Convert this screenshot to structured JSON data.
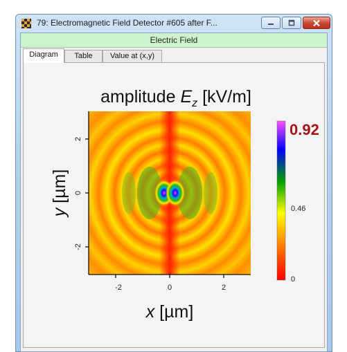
{
  "window": {
    "title": "79: Electromagnetic Field Detector #605 after F...",
    "icon": "checkerboard-app-icon",
    "controls": {
      "minimize": "minimize-icon",
      "maximize": "maximize-icon",
      "close": "close-icon"
    }
  },
  "header": {
    "label": "Electric Field"
  },
  "tabs": [
    {
      "label": "Diagram",
      "active": true
    },
    {
      "label": "Table",
      "active": false
    },
    {
      "label": "Value at (x,y)",
      "active": false
    }
  ],
  "plot": {
    "title_prefix": "amplitude ",
    "title_symbol": "E",
    "title_subscript": "z",
    "title_unit": " [kV/m]",
    "x_label_var": "x",
    "x_label_unit": " [µm]",
    "y_label_var": "y",
    "y_label_unit": " [µm]",
    "x_ticks": [
      "-2",
      "0",
      "2"
    ],
    "y_ticks": [
      "2",
      "0",
      "-2"
    ],
    "colorbar": {
      "max_label": "0.92",
      "mid_label": "0.46",
      "min_label": "0",
      "max_color": "#a31515",
      "stops": [
        "#ff0000",
        "#ff8000",
        "#ffff00",
        "#00a000",
        "#0000ff",
        "#ff50ff"
      ]
    }
  },
  "chart_data": {
    "type": "heatmap",
    "title": "amplitude Ez [kV/m]",
    "xlabel": "x [µm]",
    "ylabel": "y [µm]",
    "xlim": [
      -3,
      3
    ],
    "ylim": [
      -3,
      3
    ],
    "color_range": [
      0,
      0.92
    ],
    "colorbar_ticks": [
      0,
      0.46,
      0.92
    ],
    "x_ticks": [
      -2,
      0,
      2
    ],
    "y_ticks": [
      -2,
      0,
      2
    ],
    "peaks": [
      {
        "x": -0.3,
        "y": 0,
        "value": 0.92
      },
      {
        "x": 0.3,
        "y": 0,
        "value": 0.92
      }
    ]
  }
}
